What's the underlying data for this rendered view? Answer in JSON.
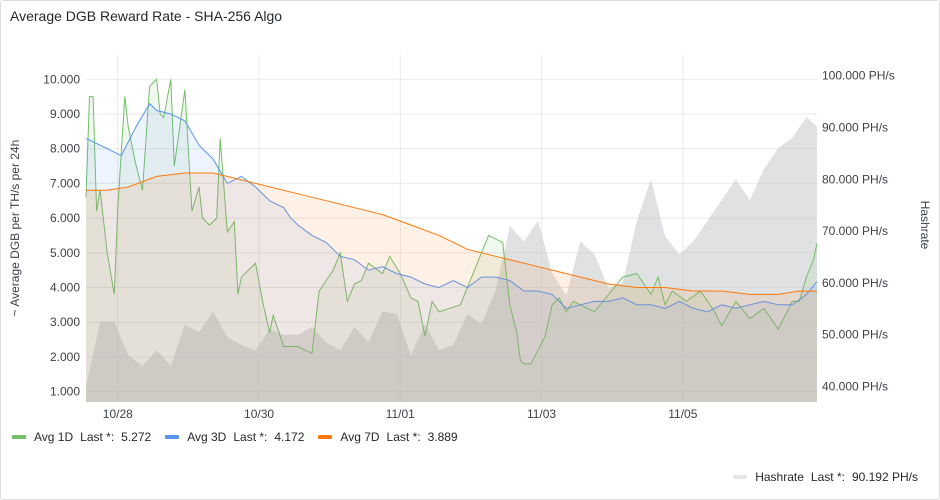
{
  "panel": {
    "title": "Average DGB Reward Rate - SHA-256 Algo"
  },
  "chart_data": {
    "type": "line",
    "title": "Average DGB Reward Rate - SHA-256 Algo",
    "ylabel": "~ Average DGB per TH/s per 24h",
    "y2label": "Hashrate",
    "ylim": [
      0.7,
      10.7
    ],
    "y2lim": [
      37,
      104
    ],
    "y_ticks": [
      "1.000",
      "2.000",
      "3.000",
      "4.000",
      "5.000",
      "6.000",
      "7.000",
      "8.000",
      "9.000",
      "10.000"
    ],
    "y2_ticks": [
      "40.000 PH/s",
      "50.000 PH/s",
      "60.000 PH/s",
      "70.000 PH/s",
      "80.000 PH/s",
      "90.000 PH/s",
      "100.000 PH/s"
    ],
    "x_ticks": [
      "10/28",
      "10/30",
      "11/01",
      "11/03",
      "11/05"
    ],
    "x_range_days": [
      0,
      10.35
    ],
    "x_tick_days": [
      0.45,
      2.45,
      4.45,
      6.45,
      8.45
    ],
    "grid": true,
    "legend_placement": "bottom",
    "series": [
      {
        "name": "Avg 1D",
        "axis": "left",
        "color": "#73bf69",
        "last": "5.272",
        "x": [
          0,
          0.05,
          0.1,
          0.15,
          0.2,
          0.3,
          0.4,
          0.45,
          0.55,
          0.6,
          0.7,
          0.8,
          0.9,
          1.0,
          1.05,
          1.1,
          1.2,
          1.25,
          1.4,
          1.5,
          1.6,
          1.65,
          1.75,
          1.85,
          1.9,
          2.0,
          2.1,
          2.15,
          2.2,
          2.4,
          2.5,
          2.6,
          2.65,
          2.7,
          2.8,
          3.0,
          3.2,
          3.3,
          3.5,
          3.6,
          3.7,
          3.8,
          3.9,
          4.0,
          4.2,
          4.3,
          4.45,
          4.6,
          4.7,
          4.8,
          4.9,
          5.0,
          5.3,
          5.5,
          5.7,
          5.9,
          6.0,
          6.1,
          6.15,
          6.2,
          6.3,
          6.5,
          6.6,
          6.7,
          6.8,
          6.9,
          7.0,
          7.2,
          7.4,
          7.6,
          7.8,
          8.0,
          8.1,
          8.2,
          8.3,
          8.5,
          8.7,
          8.9,
          9.0,
          9.2,
          9.4,
          9.6,
          9.8,
          9.9,
          10.0,
          10.1,
          10.2,
          10.3,
          10.35
        ],
        "values": [
          6.6,
          9.5,
          9.5,
          6.2,
          6.8,
          5.0,
          3.8,
          6.3,
          9.5,
          8.6,
          7.6,
          6.8,
          9.8,
          10.0,
          9.0,
          8.9,
          10.0,
          7.5,
          9.7,
          6.2,
          6.9,
          6.0,
          5.8,
          6.0,
          8.3,
          5.6,
          5.9,
          3.8,
          4.3,
          4.7,
          3.6,
          2.7,
          3.2,
          2.9,
          2.3,
          2.3,
          2.1,
          3.9,
          4.5,
          5.0,
          3.6,
          4.1,
          4.2,
          4.7,
          4.4,
          4.9,
          4.4,
          3.7,
          3.6,
          2.6,
          3.6,
          3.3,
          3.5,
          4.5,
          5.5,
          5.3,
          3.5,
          2.7,
          1.9,
          1.8,
          1.8,
          2.6,
          3.5,
          3.7,
          3.3,
          3.6,
          3.5,
          3.3,
          3.8,
          4.3,
          4.4,
          3.8,
          4.3,
          3.5,
          3.9,
          3.6,
          3.9,
          3.3,
          2.9,
          3.6,
          3.1,
          3.4,
          2.8,
          3.2,
          3.6,
          3.6,
          4.3,
          4.8,
          5.27
        ]
      },
      {
        "name": "Avg 3D",
        "axis": "left",
        "color": "#5794f2",
        "last": "4.172",
        "x": [
          0,
          0.3,
          0.5,
          0.7,
          0.9,
          1.0,
          1.2,
          1.4,
          1.6,
          1.8,
          2.0,
          2.2,
          2.4,
          2.6,
          2.7,
          2.8,
          2.9,
          3.0,
          3.2,
          3.4,
          3.6,
          3.8,
          4.0,
          4.2,
          4.4,
          4.6,
          4.8,
          5.0,
          5.2,
          5.4,
          5.6,
          5.8,
          6.0,
          6.2,
          6.4,
          6.6,
          6.8,
          7.0,
          7.2,
          7.4,
          7.6,
          7.8,
          8.0,
          8.2,
          8.4,
          8.6,
          8.8,
          9.0,
          9.2,
          9.4,
          9.6,
          9.8,
          10.0,
          10.2,
          10.35
        ],
        "values": [
          8.3,
          8.0,
          7.8,
          8.6,
          9.3,
          9.1,
          9.0,
          8.8,
          8.1,
          7.7,
          7.0,
          7.2,
          6.9,
          6.5,
          6.4,
          6.3,
          6.0,
          5.8,
          5.5,
          5.3,
          4.9,
          4.8,
          4.5,
          4.6,
          4.4,
          4.3,
          4.1,
          4.0,
          4.2,
          4.0,
          4.3,
          4.3,
          4.2,
          3.9,
          3.9,
          3.8,
          3.4,
          3.5,
          3.6,
          3.6,
          3.7,
          3.5,
          3.5,
          3.4,
          3.6,
          3.4,
          3.3,
          3.5,
          3.4,
          3.5,
          3.6,
          3.5,
          3.5,
          3.8,
          4.17
        ]
      },
      {
        "name": "Avg 7D",
        "axis": "left",
        "color": "#ff780a",
        "last": "3.889",
        "x": [
          0,
          0.3,
          0.6,
          1.0,
          1.4,
          1.8,
          2.2,
          2.6,
          3.0,
          3.4,
          3.8,
          4.2,
          4.6,
          5.0,
          5.4,
          5.8,
          6.2,
          6.6,
          7.0,
          7.4,
          7.8,
          8.2,
          8.6,
          9.0,
          9.4,
          9.8,
          10.1,
          10.35
        ],
        "values": [
          6.8,
          6.8,
          6.9,
          7.2,
          7.3,
          7.3,
          7.1,
          6.9,
          6.7,
          6.5,
          6.3,
          6.1,
          5.8,
          5.5,
          5.1,
          4.9,
          4.7,
          4.5,
          4.3,
          4.1,
          4.0,
          4.0,
          3.9,
          3.9,
          3.8,
          3.8,
          3.9,
          3.89
        ]
      },
      {
        "name": "Hashrate",
        "axis": "right",
        "color": "#c7c9cc",
        "last": "90.192 PH/s",
        "x": [
          0,
          0.2,
          0.4,
          0.6,
          0.8,
          1.0,
          1.2,
          1.4,
          1.6,
          1.8,
          2.0,
          2.2,
          2.4,
          2.6,
          2.8,
          3.0,
          3.2,
          3.4,
          3.6,
          3.8,
          4.0,
          4.2,
          4.4,
          4.6,
          4.8,
          5.0,
          5.2,
          5.4,
          5.6,
          5.8,
          6.0,
          6.2,
          6.4,
          6.6,
          6.8,
          7.0,
          7.2,
          7.4,
          7.6,
          7.8,
          8.0,
          8.2,
          8.4,
          8.6,
          8.8,
          9.0,
          9.2,
          9.4,
          9.6,
          9.8,
          10.0,
          10.2,
          10.35
        ],
        "values": [
          40.0,
          52.5,
          52.5,
          46.0,
          44.0,
          47.0,
          44.0,
          52.0,
          50.5,
          54.5,
          49.5,
          48.0,
          47.0,
          51.0,
          50.0,
          50.0,
          51.5,
          48.5,
          47.0,
          51.5,
          48.5,
          54.5,
          54.0,
          46.0,
          52.0,
          47.0,
          48.0,
          54.0,
          52.0,
          58.5,
          71.0,
          68.0,
          72.0,
          62.0,
          57.5,
          68.0,
          65.5,
          59.0,
          60.0,
          72.0,
          80.0,
          69.0,
          65.5,
          68.0,
          72.0,
          76.0,
          80.0,
          76.0,
          82.0,
          86.0,
          88.0,
          92.0,
          90.19
        ]
      }
    ]
  },
  "legend": {
    "last_prefix": "Last *:",
    "items": [
      {
        "name": "Avg 1D",
        "last": "5.272",
        "color": "#73bf69"
      },
      {
        "name": "Avg 3D",
        "last": "4.172",
        "color": "#5794f2"
      },
      {
        "name": "Avg 7D",
        "last": "3.889",
        "color": "#ff780a"
      }
    ],
    "hashrate": {
      "name": "Hashrate",
      "last": "90.192 PH/s",
      "color": "#e6e7e8"
    }
  }
}
